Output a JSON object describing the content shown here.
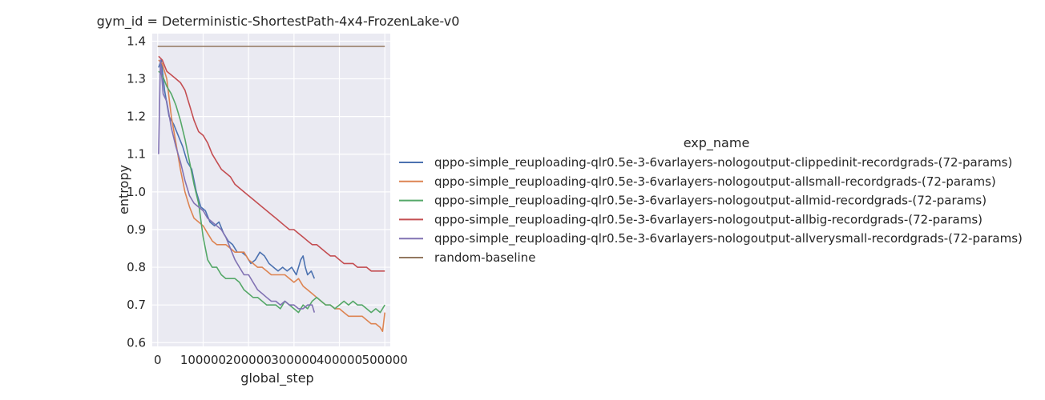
{
  "chart_data": {
    "type": "line",
    "title": "gym_id = Deterministic-ShortestPath-4x4-FrozenLake-v0",
    "xlabel": "global_step",
    "ylabel": "entropy",
    "xlim": [
      -12000,
      512000
    ],
    "ylim": [
      0.59,
      1.42
    ],
    "xticks": [
      0,
      100000,
      200000,
      300000,
      400000,
      500000
    ],
    "xtick_labels": [
      "0",
      "100000",
      "200000",
      "300000",
      "400000",
      "500000"
    ],
    "yticks": [
      0.6,
      0.7,
      0.8,
      0.9,
      1.0,
      1.1,
      1.2,
      1.3,
      1.4
    ],
    "ytick_labels": [
      "0.6",
      "0.7",
      "0.8",
      "0.9",
      "1.0",
      "1.1",
      "1.2",
      "1.3",
      "1.4"
    ],
    "grid": true,
    "legend": {
      "title": "exp_name",
      "position": "right"
    },
    "series": [
      {
        "name": "qppo-simple_reuploading-qlr0.5e-3-6varlayers-nologoutput-clippedinit-recordgrads-(72-params)",
        "color": "#4c72b0",
        "points": [
          [
            2000,
            1.33
          ],
          [
            8000,
            1.35
          ],
          [
            15000,
            1.27
          ],
          [
            25000,
            1.2
          ],
          [
            35000,
            1.18
          ],
          [
            45000,
            1.15
          ],
          [
            55000,
            1.12
          ],
          [
            65000,
            1.08
          ],
          [
            75000,
            1.06
          ],
          [
            85000,
            1.0
          ],
          [
            95000,
            0.96
          ],
          [
            105000,
            0.95
          ],
          [
            115000,
            0.92
          ],
          [
            125000,
            0.91
          ],
          [
            135000,
            0.92
          ],
          [
            145000,
            0.89
          ],
          [
            155000,
            0.87
          ],
          [
            165000,
            0.86
          ],
          [
            175000,
            0.84
          ],
          [
            185000,
            0.84
          ],
          [
            195000,
            0.83
          ],
          [
            205000,
            0.81
          ],
          [
            215000,
            0.82
          ],
          [
            225000,
            0.84
          ],
          [
            235000,
            0.83
          ],
          [
            245000,
            0.81
          ],
          [
            255000,
            0.8
          ],
          [
            265000,
            0.79
          ],
          [
            275000,
            0.8
          ],
          [
            285000,
            0.79
          ],
          [
            295000,
            0.8
          ],
          [
            305000,
            0.78
          ],
          [
            315000,
            0.82
          ],
          [
            320000,
            0.83
          ],
          [
            325000,
            0.8
          ],
          [
            330000,
            0.78
          ],
          [
            338000,
            0.79
          ],
          [
            345000,
            0.77
          ]
        ]
      },
      {
        "name": "qppo-simple_reuploading-qlr0.5e-3-6varlayers-nologoutput-allsmall-recordgrads-(72-params)",
        "color": "#dd8452",
        "points": [
          [
            2000,
            1.35
          ],
          [
            10000,
            1.34
          ],
          [
            20000,
            1.3
          ],
          [
            30000,
            1.2
          ],
          [
            40000,
            1.13
          ],
          [
            50000,
            1.06
          ],
          [
            60000,
            1.0
          ],
          [
            70000,
            0.96
          ],
          [
            80000,
            0.93
          ],
          [
            90000,
            0.92
          ],
          [
            100000,
            0.91
          ],
          [
            110000,
            0.89
          ],
          [
            120000,
            0.87
          ],
          [
            130000,
            0.86
          ],
          [
            140000,
            0.86
          ],
          [
            150000,
            0.86
          ],
          [
            160000,
            0.85
          ],
          [
            170000,
            0.84
          ],
          [
            180000,
            0.84
          ],
          [
            190000,
            0.84
          ],
          [
            200000,
            0.82
          ],
          [
            210000,
            0.81
          ],
          [
            220000,
            0.8
          ],
          [
            230000,
            0.8
          ],
          [
            240000,
            0.79
          ],
          [
            250000,
            0.78
          ],
          [
            260000,
            0.78
          ],
          [
            270000,
            0.78
          ],
          [
            280000,
            0.78
          ],
          [
            290000,
            0.77
          ],
          [
            300000,
            0.76
          ],
          [
            310000,
            0.77
          ],
          [
            320000,
            0.75
          ],
          [
            330000,
            0.74
          ],
          [
            340000,
            0.73
          ],
          [
            350000,
            0.72
          ],
          [
            360000,
            0.71
          ],
          [
            370000,
            0.7
          ],
          [
            380000,
            0.7
          ],
          [
            390000,
            0.69
          ],
          [
            400000,
            0.69
          ],
          [
            410000,
            0.68
          ],
          [
            420000,
            0.67
          ],
          [
            430000,
            0.67
          ],
          [
            440000,
            0.67
          ],
          [
            450000,
            0.67
          ],
          [
            460000,
            0.66
          ],
          [
            470000,
            0.65
          ],
          [
            480000,
            0.65
          ],
          [
            490000,
            0.64
          ],
          [
            495000,
            0.63
          ],
          [
            500000,
            0.68
          ]
        ]
      },
      {
        "name": "qppo-simple_reuploading-qlr0.5e-3-6varlayers-nologoutput-allmid-recordgrads-(72-params)",
        "color": "#55a868",
        "points": [
          [
            2000,
            1.32
          ],
          [
            10000,
            1.31
          ],
          [
            20000,
            1.28
          ],
          [
            30000,
            1.26
          ],
          [
            40000,
            1.23
          ],
          [
            50000,
            1.19
          ],
          [
            60000,
            1.14
          ],
          [
            70000,
            1.08
          ],
          [
            80000,
            1.02
          ],
          [
            90000,
            0.97
          ],
          [
            100000,
            0.88
          ],
          [
            110000,
            0.82
          ],
          [
            120000,
            0.8
          ],
          [
            130000,
            0.8
          ],
          [
            140000,
            0.78
          ],
          [
            150000,
            0.77
          ],
          [
            160000,
            0.77
          ],
          [
            170000,
            0.77
          ],
          [
            180000,
            0.76
          ],
          [
            190000,
            0.74
          ],
          [
            200000,
            0.73
          ],
          [
            210000,
            0.72
          ],
          [
            220000,
            0.72
          ],
          [
            230000,
            0.71
          ],
          [
            240000,
            0.7
          ],
          [
            250000,
            0.7
          ],
          [
            260000,
            0.7
          ],
          [
            270000,
            0.69
          ],
          [
            280000,
            0.71
          ],
          [
            290000,
            0.7
          ],
          [
            300000,
            0.69
          ],
          [
            310000,
            0.68
          ],
          [
            320000,
            0.7
          ],
          [
            330000,
            0.69
          ],
          [
            340000,
            0.71
          ],
          [
            350000,
            0.72
          ],
          [
            360000,
            0.71
          ],
          [
            370000,
            0.7
          ],
          [
            380000,
            0.7
          ],
          [
            390000,
            0.69
          ],
          [
            400000,
            0.7
          ],
          [
            410000,
            0.71
          ],
          [
            420000,
            0.7
          ],
          [
            430000,
            0.71
          ],
          [
            440000,
            0.7
          ],
          [
            450000,
            0.7
          ],
          [
            460000,
            0.69
          ],
          [
            470000,
            0.68
          ],
          [
            480000,
            0.69
          ],
          [
            490000,
            0.68
          ],
          [
            500000,
            0.7
          ]
        ]
      },
      {
        "name": "qppo-simple_reuploading-qlr0.5e-3-6varlayers-nologoutput-allbig-recordgrads-(72-params)",
        "color": "#c44e52",
        "points": [
          [
            2000,
            1.36
          ],
          [
            10000,
            1.35
          ],
          [
            20000,
            1.32
          ],
          [
            30000,
            1.31
          ],
          [
            40000,
            1.3
          ],
          [
            50000,
            1.29
          ],
          [
            60000,
            1.27
          ],
          [
            70000,
            1.23
          ],
          [
            80000,
            1.19
          ],
          [
            90000,
            1.16
          ],
          [
            100000,
            1.15
          ],
          [
            110000,
            1.13
          ],
          [
            120000,
            1.1
          ],
          [
            130000,
            1.08
          ],
          [
            140000,
            1.06
          ],
          [
            150000,
            1.05
          ],
          [
            160000,
            1.04
          ],
          [
            170000,
            1.02
          ],
          [
            180000,
            1.01
          ],
          [
            190000,
            1.0
          ],
          [
            200000,
            0.99
          ],
          [
            210000,
            0.98
          ],
          [
            220000,
            0.97
          ],
          [
            230000,
            0.96
          ],
          [
            240000,
            0.95
          ],
          [
            250000,
            0.94
          ],
          [
            260000,
            0.93
          ],
          [
            270000,
            0.92
          ],
          [
            280000,
            0.91
          ],
          [
            290000,
            0.9
          ],
          [
            300000,
            0.9
          ],
          [
            310000,
            0.89
          ],
          [
            320000,
            0.88
          ],
          [
            330000,
            0.87
          ],
          [
            340000,
            0.86
          ],
          [
            350000,
            0.86
          ],
          [
            360000,
            0.85
          ],
          [
            370000,
            0.84
          ],
          [
            380000,
            0.83
          ],
          [
            390000,
            0.83
          ],
          [
            400000,
            0.82
          ],
          [
            410000,
            0.81
          ],
          [
            420000,
            0.81
          ],
          [
            430000,
            0.81
          ],
          [
            440000,
            0.8
          ],
          [
            450000,
            0.8
          ],
          [
            460000,
            0.8
          ],
          [
            470000,
            0.79
          ],
          [
            480000,
            0.79
          ],
          [
            490000,
            0.79
          ],
          [
            500000,
            0.79
          ]
        ]
      },
      {
        "name": "qppo-simple_reuploading-qlr0.5e-3-6varlayers-nologoutput-allverysmall-recordgrads-(72-params)",
        "color": "#8172b3",
        "points": [
          [
            2000,
            1.1
          ],
          [
            6000,
            1.35
          ],
          [
            12000,
            1.26
          ],
          [
            20000,
            1.24
          ],
          [
            30000,
            1.17
          ],
          [
            40000,
            1.12
          ],
          [
            50000,
            1.08
          ],
          [
            60000,
            1.03
          ],
          [
            70000,
            0.99
          ],
          [
            80000,
            0.97
          ],
          [
            90000,
            0.96
          ],
          [
            100000,
            0.95
          ],
          [
            110000,
            0.93
          ],
          [
            120000,
            0.92
          ],
          [
            130000,
            0.91
          ],
          [
            140000,
            0.9
          ],
          [
            150000,
            0.88
          ],
          [
            160000,
            0.85
          ],
          [
            170000,
            0.82
          ],
          [
            180000,
            0.8
          ],
          [
            190000,
            0.78
          ],
          [
            200000,
            0.78
          ],
          [
            210000,
            0.76
          ],
          [
            220000,
            0.74
          ],
          [
            230000,
            0.73
          ],
          [
            240000,
            0.72
          ],
          [
            250000,
            0.71
          ],
          [
            260000,
            0.71
          ],
          [
            270000,
            0.7
          ],
          [
            280000,
            0.71
          ],
          [
            290000,
            0.7
          ],
          [
            300000,
            0.7
          ],
          [
            310000,
            0.69
          ],
          [
            320000,
            0.69
          ],
          [
            330000,
            0.7
          ],
          [
            340000,
            0.7
          ],
          [
            345000,
            0.68
          ]
        ]
      },
      {
        "name": "random-baseline",
        "color": "#937860",
        "points": [
          [
            0,
            1.386
          ],
          [
            500000,
            1.386
          ]
        ]
      }
    ]
  }
}
